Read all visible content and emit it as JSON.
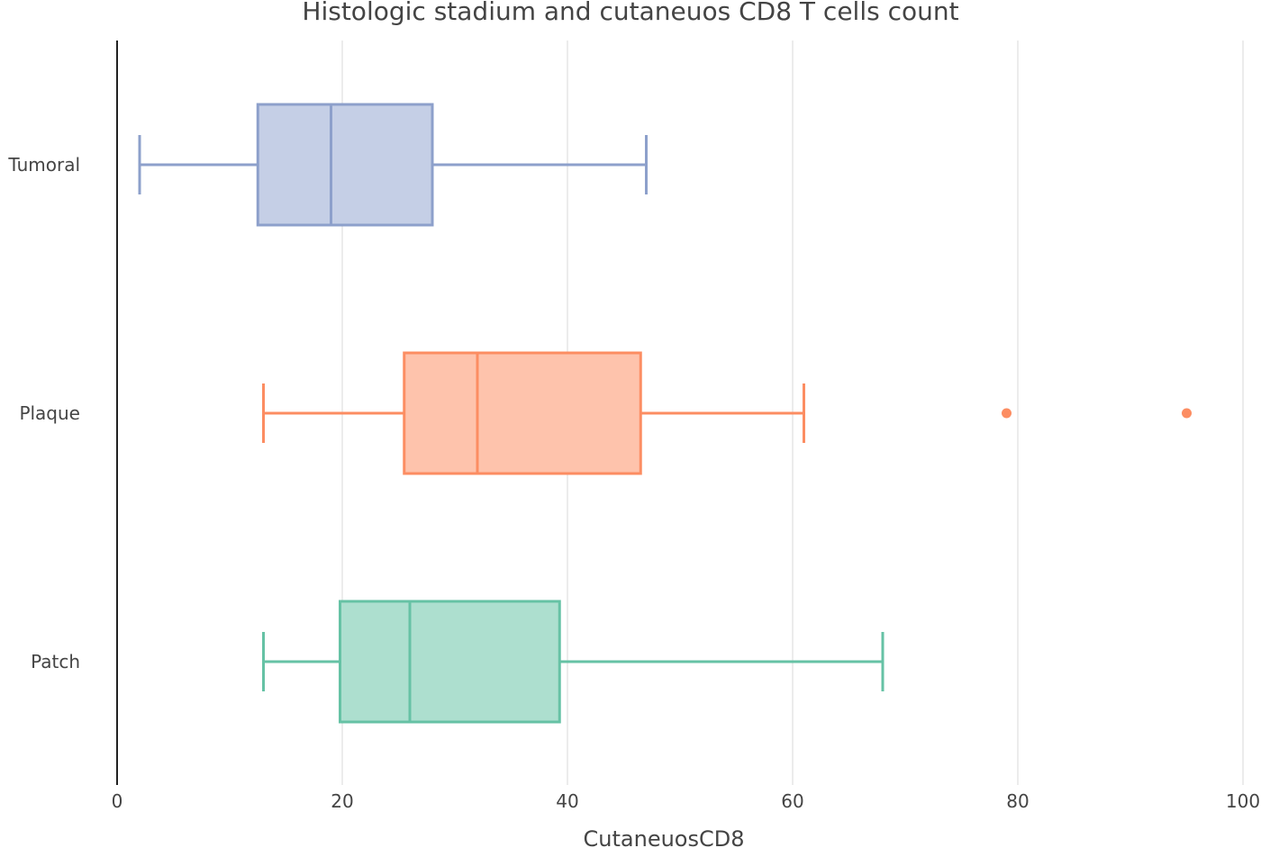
{
  "chart_data": {
    "type": "box",
    "orientation": "horizontal",
    "title": "Histologic stadium and cutaneuos CD8 T cells count",
    "xlabel": "CutaneuosCD8",
    "ylabel": "",
    "xlim": [
      0,
      100
    ],
    "xticks": [
      0,
      20,
      40,
      60,
      80,
      100
    ],
    "grid": true,
    "legend": "none",
    "categories": [
      "Tumoral",
      "Plaque",
      "Patch"
    ],
    "series": [
      {
        "category": "Tumoral",
        "color": "#8da0cb",
        "fill": "#c5cfe6",
        "whisker_low": 2,
        "q1": 12.5,
        "median": 19,
        "q3": 28,
        "whisker_high": 47,
        "outliers": []
      },
      {
        "category": "Plaque",
        "color": "#fc8d62",
        "fill": "#fec3ac",
        "whisker_low": 13,
        "q1": 25.5,
        "median": 32,
        "q3": 46.5,
        "whisker_high": 61,
        "outliers": [
          79,
          95
        ]
      },
      {
        "category": "Patch",
        "color": "#66c2a5",
        "fill": "#addfcf",
        "whisker_low": 13,
        "q1": 19.8,
        "median": 26,
        "q3": 39.3,
        "whisker_high": 68,
        "outliers": []
      }
    ]
  }
}
